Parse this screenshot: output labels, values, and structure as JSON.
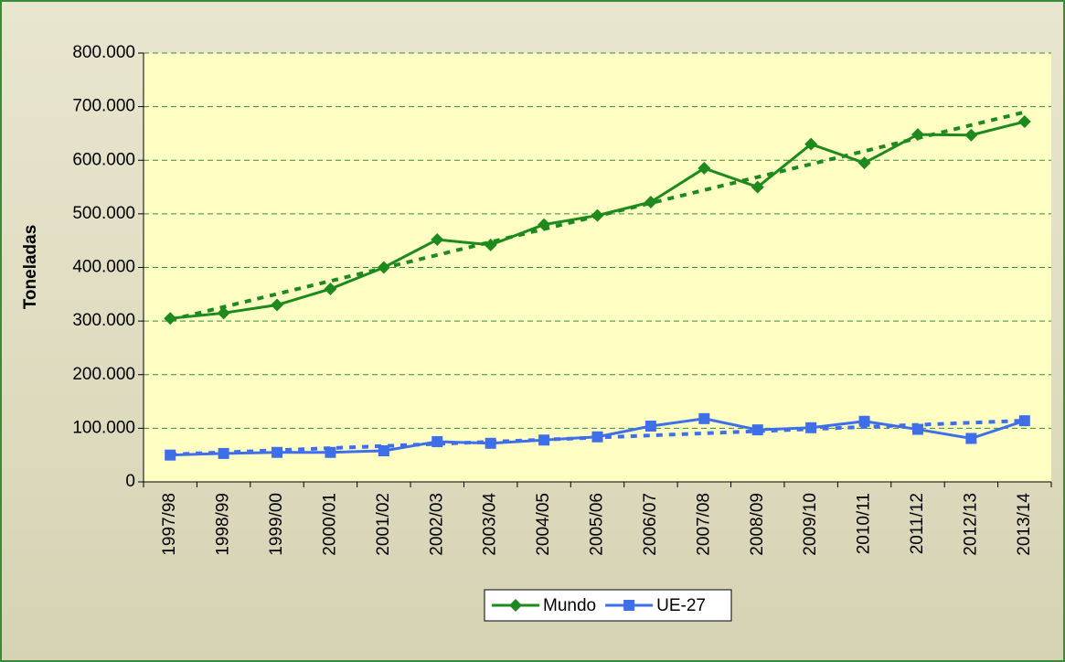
{
  "chart_data": {
    "type": "line",
    "y_label": "Toneladas",
    "categories": [
      "1997/98",
      "1998/99",
      "1999/00",
      "2000/01",
      "2001/02",
      "2002/03",
      "2003/04",
      "2004/05",
      "2005/06",
      "2006/07",
      "2007/08",
      "2008/09",
      "2009/10",
      "2010/11",
      "2011/12",
      "2012/13",
      "2013/14"
    ],
    "series": [
      {
        "name": "Mundo",
        "color": "#1e8a1e",
        "marker": "diamond",
        "values": [
          305000,
          315000,
          330000,
          360000,
          400000,
          452000,
          442000,
          480000,
          497000,
          522000,
          585000,
          550000,
          630000,
          595000,
          648000,
          647000,
          672000
        ]
      },
      {
        "name": "UE-27",
        "color": "#3f6fe8",
        "marker": "square",
        "values": [
          50000,
          53000,
          55000,
          55000,
          58000,
          75000,
          72000,
          78000,
          84000,
          104000,
          118000,
          97000,
          101000,
          113000,
          98000,
          81000,
          114000
        ]
      }
    ],
    "trendline": true,
    "ylim": [
      0,
      800000
    ],
    "yticks": [
      0,
      {
        "value": 100000,
        "label": "100.000"
      },
      {
        "value": 200000,
        "label": "200.000"
      },
      {
        "value": 300000,
        "label": "300.000"
      },
      {
        "value": 400000,
        "label": "400.000"
      },
      {
        "value": 500000,
        "label": "500.000"
      },
      {
        "value": 600000,
        "label": "600.000"
      },
      {
        "value": 700000,
        "label": "700.000"
      },
      {
        "value": 800000,
        "label": "800.000"
      }
    ],
    "grid": true,
    "legend": "bottom"
  }
}
